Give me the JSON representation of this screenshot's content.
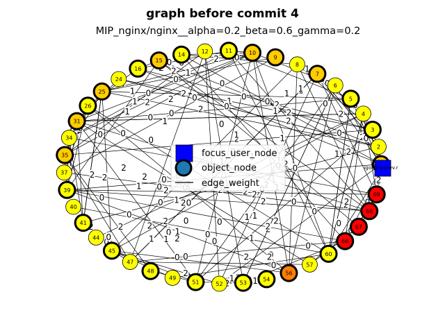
{
  "figure": {
    "title": "graph before commit 4",
    "subtitle": "MIP_nginx/nginx__alpha=0.2_beta=0.6_gamma=0.2"
  },
  "colors": {
    "focus_user": "#0000ff",
    "object_default": "#1f77b4",
    "yellow": "#ffff00",
    "gold": "#ffcc00",
    "orange": "#ff7f00",
    "red": "#ff0000",
    "edge": "#000000"
  },
  "legend": {
    "placement": "center",
    "items": [
      {
        "label": "focus_user_node",
        "marker": "square"
      },
      {
        "label": "object_node",
        "marker": "circle"
      },
      {
        "label": "edge_weight",
        "marker": "line"
      }
    ]
  },
  "focus_user": {
    "label": "igor@sysoev.r"
  },
  "nodes": [
    {
      "id": "0",
      "color": "gold"
    },
    {
      "id": "2",
      "color": "yellow"
    },
    {
      "id": "3",
      "color": "yellow"
    },
    {
      "id": "4",
      "color": "yellow"
    },
    {
      "id": "5",
      "color": "yellow"
    },
    {
      "id": "6",
      "color": "yellow"
    },
    {
      "id": "7",
      "color": "gold"
    },
    {
      "id": "8",
      "color": "yellow"
    },
    {
      "id": "9",
      "color": "gold"
    },
    {
      "id": "10",
      "color": "gold"
    },
    {
      "id": "11",
      "color": "yellow"
    },
    {
      "id": "12",
      "color": "yellow"
    },
    {
      "id": "14",
      "color": "yellow"
    },
    {
      "id": "15",
      "color": "gold"
    },
    {
      "id": "16",
      "color": "yellow"
    },
    {
      "id": "24",
      "color": "yellow"
    },
    {
      "id": "25",
      "color": "gold"
    },
    {
      "id": "26",
      "color": "yellow"
    },
    {
      "id": "31",
      "color": "gold"
    },
    {
      "id": "34",
      "color": "yellow"
    },
    {
      "id": "35",
      "color": "gold"
    },
    {
      "id": "37",
      "color": "yellow"
    },
    {
      "id": "39",
      "color": "yellow"
    },
    {
      "id": "40",
      "color": "yellow"
    },
    {
      "id": "41",
      "color": "yellow"
    },
    {
      "id": "44",
      "color": "yellow"
    },
    {
      "id": "45",
      "color": "yellow"
    },
    {
      "id": "47",
      "color": "yellow"
    },
    {
      "id": "48",
      "color": "yellow"
    },
    {
      "id": "49",
      "color": "yellow"
    },
    {
      "id": "51",
      "color": "yellow"
    },
    {
      "id": "52",
      "color": "yellow"
    },
    {
      "id": "53",
      "color": "yellow"
    },
    {
      "id": "54",
      "color": "yellow"
    },
    {
      "id": "56",
      "color": "orange"
    },
    {
      "id": "57",
      "color": "yellow"
    },
    {
      "id": "60",
      "color": "yellow"
    },
    {
      "id": "66",
      "color": "red"
    },
    {
      "id": "67",
      "color": "red"
    },
    {
      "id": "68",
      "color": "red"
    },
    {
      "id": "69",
      "color": "red"
    }
  ],
  "edge_weight_labels": [
    "0",
    "1",
    "2"
  ]
}
